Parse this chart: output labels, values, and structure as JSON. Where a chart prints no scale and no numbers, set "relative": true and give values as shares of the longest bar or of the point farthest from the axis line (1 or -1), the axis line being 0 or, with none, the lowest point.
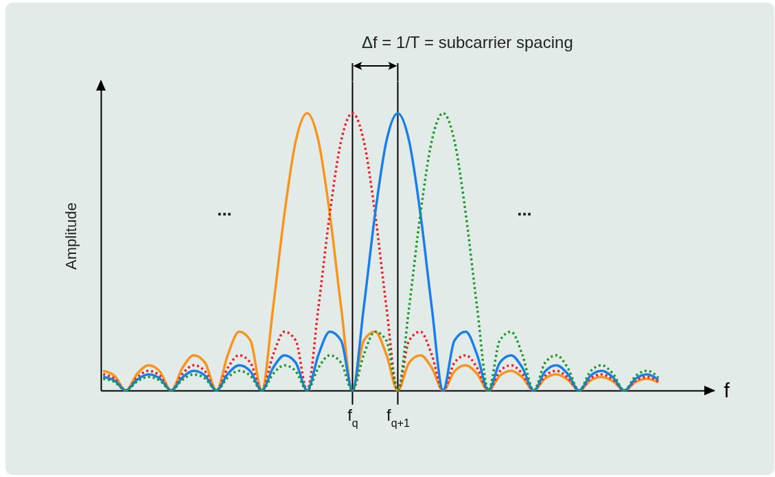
{
  "chart_data": {
    "type": "line",
    "relative": true,
    "xlabel": "f",
    "ylabel": "Amplitude",
    "categories": [
      null,
      null,
      null,
      null,
      null,
      null,
      null,
      null,
      null,
      null,
      null,
      null,
      null,
      null,
      null,
      null,
      null,
      null,
      null,
      null,
      null,
      null,
      "f$_{q}$",
      null,
      null,
      null,
      "f$_{q+1}$",
      null,
      null,
      null,
      null,
      null,
      null,
      null,
      null,
      null,
      null,
      null,
      null,
      null,
      null,
      null,
      null,
      null,
      null,
      null,
      null,
      null,
      null,
      null
    ],
    "series": [
      {
        "color": "#f7941d",
        "line_style": "solid",
        "values": [
          0.071,
          0.053,
          0,
          0.06,
          0.091,
          0.069,
          0,
          0.082,
          0.127,
          0.1,
          0,
          0.129,
          0.212,
          0.18,
          0,
          0.3,
          0.637,
          0.9,
          1,
          0.9,
          0.637,
          0.3,
          0,
          0.18,
          0.212,
          0.129,
          0,
          0.1,
          0.127,
          0.082,
          0,
          0.069,
          0.091,
          0.06,
          0,
          0.053,
          0.071,
          0.047,
          0,
          0.043,
          0.058,
          0.039,
          0,
          0.036,
          0.049,
          0.033,
          0,
          0.031,
          0.042,
          0.029
        ]
      },
      {
        "color": "#ee1c25",
        "line_style": "dotted",
        "values": [
          0.058,
          0.043,
          0,
          0.047,
          0.071,
          0.053,
          0,
          0.06,
          0.091,
          0.069,
          0,
          0.082,
          0.127,
          0.1,
          0,
          0.129,
          0.212,
          0.18,
          0,
          0.3,
          0.637,
          0.9,
          1,
          0.9,
          0.637,
          0.3,
          0,
          0.18,
          0.212,
          0.129,
          0,
          0.1,
          0.127,
          0.082,
          0,
          0.069,
          0.091,
          0.06,
          0,
          0.053,
          0.071,
          0.047,
          0,
          0.043,
          0.058,
          0.039,
          0,
          0.036,
          0.049,
          0.033
        ]
      },
      {
        "color": "#1a7ee8",
        "line_style": "solid",
        "values": [
          0.049,
          0.036,
          0,
          0.039,
          0.058,
          0.043,
          0,
          0.047,
          0.071,
          0.053,
          0,
          0.06,
          0.091,
          0.069,
          0,
          0.082,
          0.127,
          0.1,
          0,
          0.129,
          0.212,
          0.18,
          0,
          0.3,
          0.637,
          0.9,
          1,
          0.9,
          0.637,
          0.3,
          0,
          0.18,
          0.212,
          0.129,
          0,
          0.1,
          0.127,
          0.082,
          0,
          0.069,
          0.091,
          0.06,
          0,
          0.053,
          0.071,
          0.047,
          0,
          0.043,
          0.058,
          0.039
        ]
      },
      {
        "color": "#1a9a2a",
        "line_style": "dotted",
        "values": [
          0.042,
          0.031,
          0,
          0.033,
          0.049,
          0.036,
          0,
          0.039,
          0.058,
          0.043,
          0,
          0.047,
          0.071,
          0.053,
          0,
          0.06,
          0.091,
          0.069,
          0,
          0.082,
          0.127,
          0.1,
          0,
          0.129,
          0.212,
          0.18,
          0,
          0.3,
          0.637,
          0.9,
          1,
          0.9,
          0.637,
          0.3,
          0,
          0.18,
          0.212,
          0.129,
          0,
          0.1,
          0.127,
          0.082,
          0,
          0.069,
          0.091,
          0.06,
          0,
          0.053,
          0.071,
          0.047
        ]
      }
    ],
    "grid": "x",
    "annotations": [
      "Δf = 1/T = subcarrier spacing",
      "...",
      "..."
    ]
  }
}
